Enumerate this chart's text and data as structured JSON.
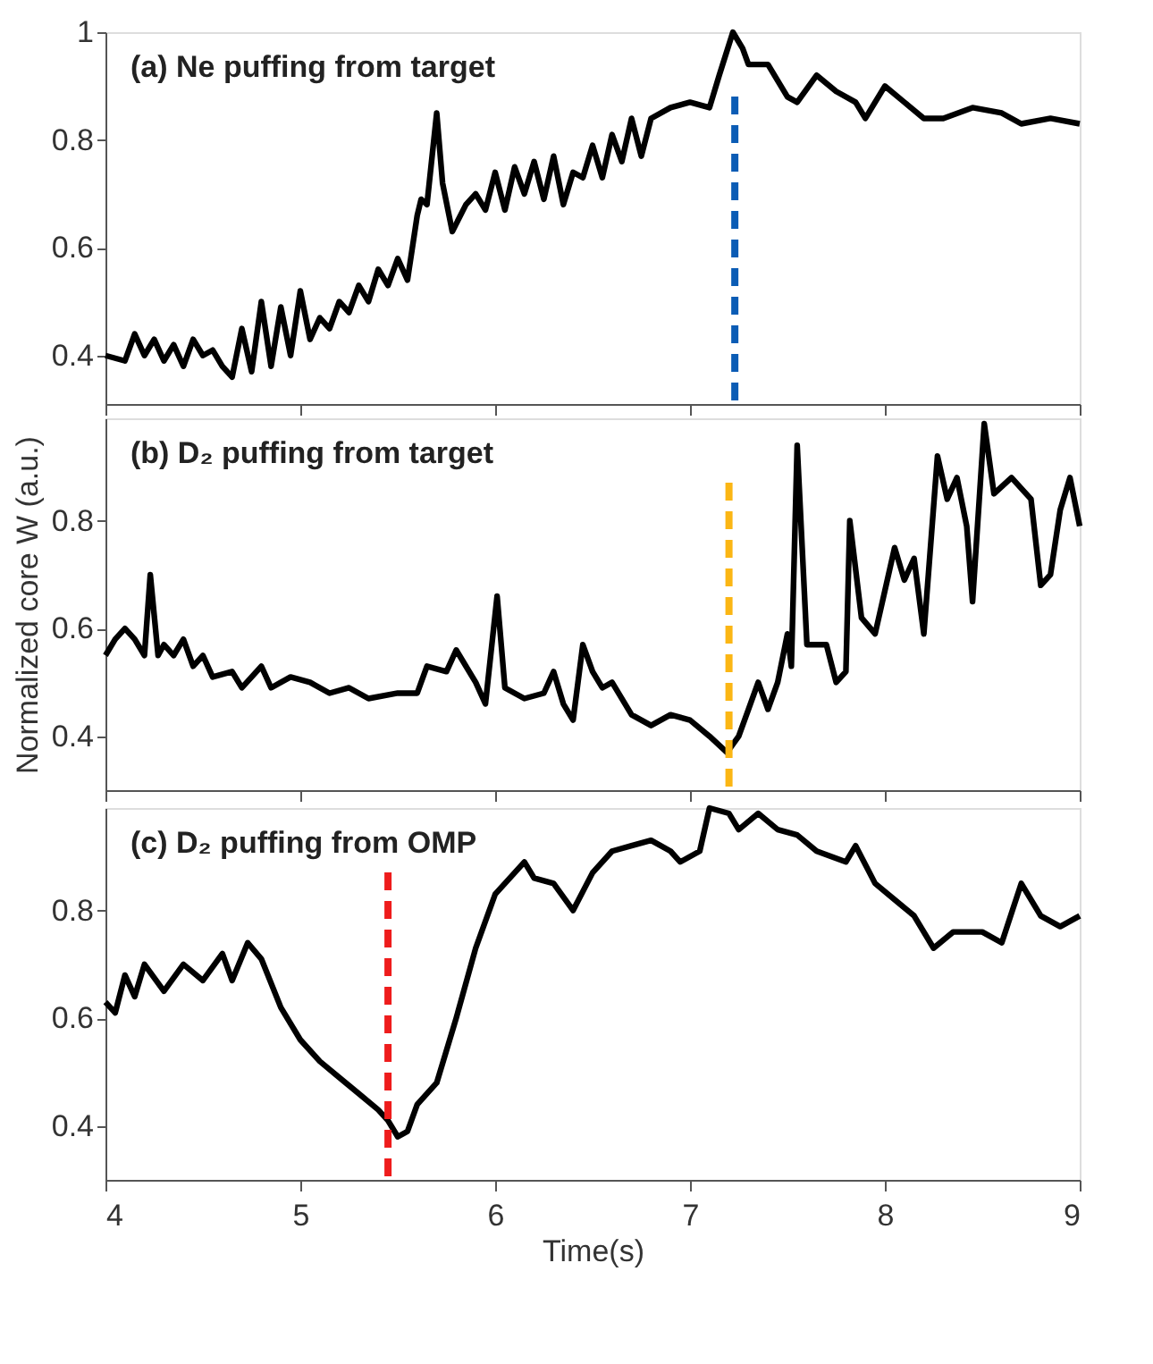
{
  "chart_data": [
    {
      "type": "line",
      "title": "(a) Ne puffing from target",
      "xlim": [
        4,
        9
      ],
      "xticks": [
        4,
        5,
        6,
        7,
        8,
        9
      ],
      "ylim": [
        0.31,
        1
      ],
      "yticks": [
        0.4,
        0.6,
        0.8,
        1
      ],
      "grid": false,
      "tick_labels": "y",
      "line_style": "solid",
      "marker": "none",
      "series": [
        {
          "color": "#000000",
          "x": [
            4.0,
            4.1,
            4.15,
            4.2,
            4.25,
            4.3,
            4.35,
            4.4,
            4.45,
            4.5,
            4.55,
            4.6,
            4.65,
            4.7,
            4.75,
            4.8,
            4.85,
            4.9,
            4.95,
            5.0,
            5.05,
            5.1,
            5.15,
            5.2,
            5.25,
            5.3,
            5.35,
            5.4,
            5.45,
            5.5,
            5.55,
            5.6,
            5.62,
            5.65,
            5.7,
            5.73,
            5.78,
            5.85,
            5.9,
            5.95,
            6.0,
            6.05,
            6.1,
            6.15,
            6.2,
            6.25,
            6.3,
            6.35,
            6.4,
            6.45,
            6.5,
            6.55,
            6.6,
            6.65,
            6.7,
            6.75,
            6.8,
            6.9,
            7.0,
            7.1,
            7.15,
            7.22,
            7.27,
            7.3,
            7.4,
            7.5,
            7.55,
            7.65,
            7.75,
            7.85,
            7.9,
            8.0,
            8.1,
            8.2,
            8.3,
            8.45,
            8.6,
            8.7,
            8.85,
            9.0
          ],
          "values": [
            0.4,
            0.39,
            0.44,
            0.4,
            0.43,
            0.39,
            0.42,
            0.38,
            0.43,
            0.4,
            0.41,
            0.38,
            0.36,
            0.45,
            0.37,
            0.5,
            0.38,
            0.49,
            0.4,
            0.52,
            0.43,
            0.47,
            0.45,
            0.5,
            0.48,
            0.53,
            0.5,
            0.56,
            0.53,
            0.58,
            0.54,
            0.66,
            0.69,
            0.68,
            0.85,
            0.72,
            0.63,
            0.68,
            0.7,
            0.67,
            0.74,
            0.67,
            0.75,
            0.7,
            0.76,
            0.69,
            0.77,
            0.68,
            0.74,
            0.73,
            0.79,
            0.73,
            0.81,
            0.76,
            0.84,
            0.77,
            0.84,
            0.86,
            0.87,
            0.86,
            0.92,
            1.0,
            0.97,
            0.94,
            0.94,
            0.88,
            0.87,
            0.92,
            0.89,
            0.87,
            0.84,
            0.9,
            0.87,
            0.84,
            0.84,
            0.86,
            0.85,
            0.83,
            0.84,
            0.83
          ]
        }
      ],
      "ref_lines": [
        {
          "axis": "x",
          "value": 7.23,
          "color": "#0b5cb5",
          "line_style": "dashed"
        }
      ]
    },
    {
      "type": "line",
      "title": "(b) D₂ puffing from target",
      "ylabel": "Normalized core W (a.u.)",
      "xlim": [
        4,
        9
      ],
      "xticks": [
        4,
        5,
        6,
        7,
        8,
        9
      ],
      "ylim": [
        0.3,
        0.99
      ],
      "yticks": [
        0.4,
        0.6,
        0.8
      ],
      "grid": false,
      "tick_labels": "y",
      "line_style": "solid",
      "marker": "none",
      "series": [
        {
          "color": "#000000",
          "x": [
            4.0,
            4.05,
            4.1,
            4.15,
            4.2,
            4.23,
            4.27,
            4.3,
            4.35,
            4.4,
            4.45,
            4.5,
            4.55,
            4.65,
            4.7,
            4.8,
            4.85,
            4.95,
            5.05,
            5.15,
            5.25,
            5.35,
            5.5,
            5.6,
            5.65,
            5.75,
            5.8,
            5.9,
            5.95,
            6.01,
            6.05,
            6.15,
            6.25,
            6.3,
            6.35,
            6.4,
            6.45,
            6.5,
            6.55,
            6.6,
            6.7,
            6.8,
            6.9,
            7.0,
            7.1,
            7.19,
            7.25,
            7.3,
            7.35,
            7.4,
            7.45,
            7.5,
            7.52,
            7.55,
            7.6,
            7.7,
            7.75,
            7.8,
            7.82,
            7.88,
            7.95,
            8.0,
            8.05,
            8.1,
            8.15,
            8.2,
            8.27,
            8.32,
            8.37,
            8.42,
            8.45,
            8.51,
            8.56,
            8.65,
            8.75,
            8.8,
            8.85,
            8.9,
            8.95,
            9.0
          ],
          "values": [
            0.55,
            0.58,
            0.6,
            0.58,
            0.55,
            0.7,
            0.55,
            0.57,
            0.55,
            0.58,
            0.53,
            0.55,
            0.51,
            0.52,
            0.49,
            0.53,
            0.49,
            0.51,
            0.5,
            0.48,
            0.49,
            0.47,
            0.48,
            0.48,
            0.53,
            0.52,
            0.56,
            0.5,
            0.46,
            0.66,
            0.49,
            0.47,
            0.48,
            0.52,
            0.46,
            0.43,
            0.57,
            0.52,
            0.49,
            0.5,
            0.44,
            0.42,
            0.44,
            0.43,
            0.4,
            0.37,
            0.4,
            0.45,
            0.5,
            0.45,
            0.5,
            0.59,
            0.53,
            0.94,
            0.57,
            0.57,
            0.5,
            0.52,
            0.8,
            0.62,
            0.59,
            0.67,
            0.75,
            0.69,
            0.73,
            0.59,
            0.92,
            0.84,
            0.88,
            0.79,
            0.65,
            0.98,
            0.85,
            0.88,
            0.84,
            0.68,
            0.7,
            0.82,
            0.88,
            0.79
          ]
        }
      ],
      "ref_lines": [
        {
          "axis": "x",
          "value": 7.2,
          "color": "#fbb614",
          "line_style": "dashed"
        }
      ]
    },
    {
      "type": "line",
      "title": "(c) D₂ puffing from OMP",
      "xlabel": "Time(s)",
      "xlim": [
        4,
        9
      ],
      "xticks": [
        4,
        5,
        6,
        7,
        8,
        9
      ],
      "ylim": [
        0.3,
        0.99
      ],
      "yticks": [
        0.4,
        0.6,
        0.8
      ],
      "grid": false,
      "line_style": "solid",
      "marker": "none",
      "series": [
        {
          "color": "#000000",
          "x": [
            4.0,
            4.05,
            4.1,
            4.15,
            4.2,
            4.3,
            4.4,
            4.5,
            4.6,
            4.65,
            4.73,
            4.8,
            4.9,
            5.0,
            5.1,
            5.2,
            5.3,
            5.4,
            5.45,
            5.5,
            5.55,
            5.6,
            5.7,
            5.8,
            5.9,
            6.0,
            6.1,
            6.15,
            6.2,
            6.3,
            6.4,
            6.5,
            6.6,
            6.7,
            6.8,
            6.9,
            6.95,
            7.05,
            7.1,
            7.2,
            7.25,
            7.35,
            7.45,
            7.55,
            7.65,
            7.8,
            7.85,
            7.95,
            8.05,
            8.15,
            8.25,
            8.35,
            8.5,
            8.6,
            8.7,
            8.8,
            8.9,
            9.0
          ],
          "values": [
            0.63,
            0.61,
            0.68,
            0.64,
            0.7,
            0.65,
            0.7,
            0.67,
            0.72,
            0.67,
            0.74,
            0.71,
            0.62,
            0.56,
            0.52,
            0.49,
            0.46,
            0.43,
            0.41,
            0.38,
            0.39,
            0.44,
            0.48,
            0.6,
            0.73,
            0.83,
            0.87,
            0.89,
            0.86,
            0.85,
            0.8,
            0.87,
            0.91,
            0.92,
            0.93,
            0.91,
            0.89,
            0.91,
            0.99,
            0.98,
            0.95,
            0.98,
            0.95,
            0.94,
            0.91,
            0.89,
            0.92,
            0.85,
            0.82,
            0.79,
            0.73,
            0.76,
            0.76,
            0.74,
            0.85,
            0.79,
            0.77,
            0.79
          ]
        }
      ],
      "ref_lines": [
        {
          "axis": "x",
          "value": 5.45,
          "color": "#ee1c1c",
          "line_style": "dashed"
        }
      ]
    }
  ]
}
